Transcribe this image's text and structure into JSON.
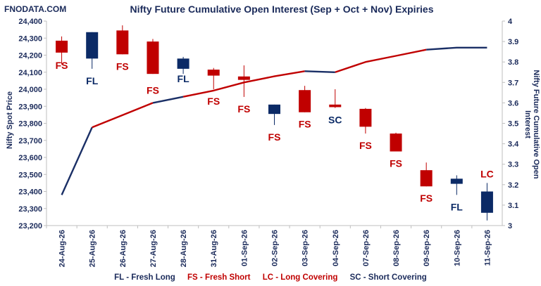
{
  "brand": "FNODATA.COM",
  "chart_data": {
    "type": "candlestick+line",
    "title": "Nifty Future Cumulative Open Interest (Sep + Oct + Nov) Expiries",
    "ylabel_left": "Nifty Spot Price",
    "ylabel_right": "Nifty Future Cumulative Open Interest",
    "ylim_left": [
      23200,
      24400
    ],
    "ylim_right": [
      3,
      4
    ],
    "categories": [
      "24-Aug-26",
      "25-Aug-26",
      "26-Aug-26",
      "27-Aug-26",
      "28-Aug-26",
      "31-Aug-26",
      "01-Sep-26",
      "02-Sep-26",
      "03-Sep-26",
      "04-Sep-26",
      "07-Sep-26",
      "08-Sep-26",
      "09-Sep-26",
      "10-Sep-26",
      "11-Sep-26"
    ],
    "yticks_left": [
      "23,200",
      "23,300",
      "23,400",
      "23,500",
      "23,600",
      "23,700",
      "23,800",
      "23,900",
      "24,000",
      "24,100",
      "24,200",
      "24,300",
      "24,400"
    ],
    "yticks_right": [
      "3",
      "3.1",
      "3.2",
      "3.3",
      "3.4",
      "3.5",
      "3.6",
      "3.7",
      "3.8",
      "3.9",
      "4"
    ],
    "candles": [
      {
        "open": 24285,
        "close": 24215,
        "high": 24310,
        "low": 24145,
        "tag": "FS"
      },
      {
        "open": 24180,
        "close": 24335,
        "high": 24335,
        "low": 24120,
        "tag": "FL"
      },
      {
        "open": 24345,
        "close": 24205,
        "high": 24375,
        "low": 24205,
        "tag": "FS"
      },
      {
        "open": 24280,
        "close": 24090,
        "high": 24295,
        "low": 24090,
        "tag": "FS"
      },
      {
        "open": 24120,
        "close": 24180,
        "high": 24190,
        "low": 24090,
        "tag": "FL"
      },
      {
        "open": 24115,
        "close": 24080,
        "high": 24125,
        "low": 24000,
        "tag": "FS"
      },
      {
        "open": 24075,
        "close": 24055,
        "high": 24140,
        "low": 23955,
        "tag": "FS"
      },
      {
        "open": 23855,
        "close": 23910,
        "high": 23910,
        "low": 23790,
        "tag": "FS"
      },
      {
        "open": 23995,
        "close": 23865,
        "high": 24020,
        "low": 23865,
        "tag": "FS"
      },
      {
        "open": 23910,
        "close": 23895,
        "high": 24000,
        "low": 23890,
        "tag": "SC"
      },
      {
        "open": 23885,
        "close": 23780,
        "high": 23890,
        "low": 23740,
        "tag": "FS"
      },
      {
        "open": 23740,
        "close": 23635,
        "high": 23745,
        "low": 23635,
        "tag": "FS"
      },
      {
        "open": 23525,
        "close": 23430,
        "high": 23570,
        "low": 23430,
        "tag": "FS"
      },
      {
        "open": 23445,
        "close": 23475,
        "high": 23495,
        "low": 23380,
        "tag": "FL"
      },
      {
        "open": 23275,
        "close": 23400,
        "high": 23450,
        "low": 23230,
        "tag": "LC"
      }
    ],
    "oi_series": {
      "x_index": [
        0,
        1,
        2,
        3,
        4,
        5,
        6,
        7,
        8,
        9,
        10,
        11,
        12,
        13,
        14
      ],
      "values": [
        3.15,
        3.48,
        3.54,
        3.6,
        3.63,
        3.66,
        3.7,
        3.73,
        3.755,
        3.75,
        3.8,
        3.83,
        3.86,
        3.87,
        3.87
      ]
    },
    "colors": {
      "fresh_long": "#0b2a66",
      "fresh_short": "#c00000",
      "long_covering": "#c00000",
      "short_covering": "#0b2a66",
      "oi_line_first": "#1a2f66",
      "oi_line_second": "#c00000"
    },
    "legend_placement": "bottom"
  },
  "legend": {
    "fl": "FL - Fresh Long",
    "fs": "FS - Fresh Short",
    "lc": "LC - Long Covering",
    "sc": "SC - Short Covering"
  }
}
